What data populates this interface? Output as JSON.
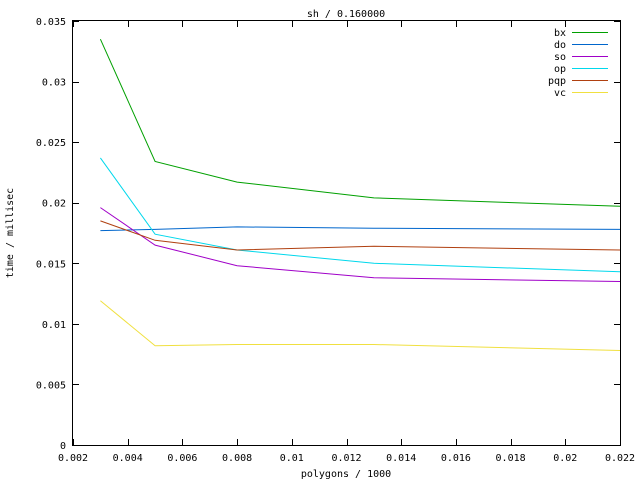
{
  "chart_data": {
    "type": "line",
    "title": "sh / 0.160000",
    "xlabel": "polygons / 1000",
    "ylabel": "time / millisec",
    "xlim": [
      0.002,
      0.022
    ],
    "ylim": [
      0,
      0.035
    ],
    "xticks": [
      0.002,
      0.004,
      0.006,
      0.008,
      0.01,
      0.012,
      0.014,
      0.016,
      0.018,
      0.02,
      0.022
    ],
    "xtick_labels": [
      "0.002",
      "0.004",
      "0.006",
      "0.008",
      "0.01",
      "0.012",
      "0.014",
      "0.016",
      "0.018",
      "0.02",
      "0.022"
    ],
    "yticks": [
      0,
      0.005,
      0.01,
      0.015,
      0.02,
      0.025,
      0.03,
      0.035
    ],
    "ytick_labels": [
      "0",
      "0.005",
      "0.01",
      "0.015",
      "0.02",
      "0.025",
      "0.03",
      "0.035"
    ],
    "grid": false,
    "legend_position": "top-right",
    "x": [
      0.003,
      0.005,
      0.008,
      0.013,
      0.022
    ],
    "series": [
      {
        "name": "bx",
        "color": "#00a000",
        "values": [
          0.0335,
          0.0234,
          0.0217,
          0.0204,
          0.0197
        ]
      },
      {
        "name": "do",
        "color": "#0066cc",
        "values": [
          0.0177,
          0.0178,
          0.018,
          0.0179,
          0.0178
        ]
      },
      {
        "name": "so",
        "color": "#a000c8",
        "values": [
          0.0196,
          0.0165,
          0.0148,
          0.0138,
          0.0135
        ]
      },
      {
        "name": "op",
        "color": "#00d8ec",
        "values": [
          0.0237,
          0.0174,
          0.0161,
          0.015,
          0.0143
        ]
      },
      {
        "name": "pqp",
        "color": "#b04010",
        "values": [
          0.0185,
          0.0169,
          0.0161,
          0.0164,
          0.0161
        ]
      },
      {
        "name": "vc",
        "color": "#f0e040",
        "values": [
          0.0119,
          0.0082,
          0.0083,
          0.0083,
          0.0078
        ]
      }
    ]
  }
}
